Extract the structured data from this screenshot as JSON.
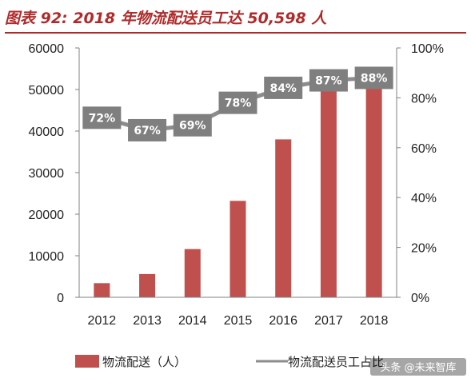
{
  "title": "图表 92:   2018 年物流配送员工达 50,598 人",
  "watermark": "头条 @未来智库",
  "colors": {
    "bar": "#c0504d",
    "line": "#8c8c8c",
    "label_box": "#7f7f7f",
    "title": "#b02a2a"
  },
  "chart_data": {
    "type": "bar",
    "categories": [
      "2012",
      "2013",
      "2014",
      "2015",
      "2016",
      "2017",
      "2018"
    ],
    "series": [
      {
        "name": "物流配送（人）",
        "type": "bar",
        "axis": "left",
        "values": [
          3400,
          5600,
          11600,
          23200,
          38000,
          53000,
          50598
        ]
      },
      {
        "name": "物流配送员工占比",
        "type": "line",
        "axis": "right",
        "values": [
          72,
          67,
          69,
          78,
          84,
          87,
          88
        ],
        "labels": [
          "72%",
          "67%",
          "69%",
          "78%",
          "84%",
          "87%",
          "88%"
        ]
      }
    ],
    "y_left": {
      "min": 0,
      "max": 60000,
      "ticks": [
        "0",
        "10000",
        "20000",
        "30000",
        "40000",
        "50000",
        "60000"
      ]
    },
    "y_right": {
      "min": 0,
      "max": 100,
      "ticks": [
        "0%",
        "20%",
        "40%",
        "60%",
        "80%",
        "100%"
      ]
    },
    "legend_position": "bottom"
  }
}
